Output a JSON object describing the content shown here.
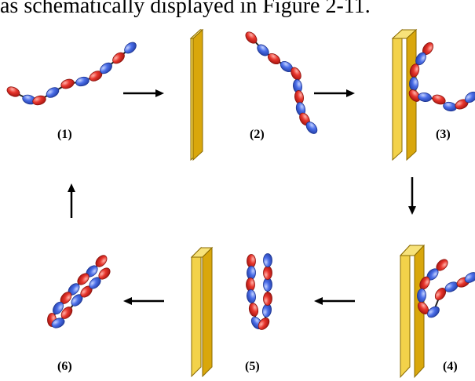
{
  "caption": "as schematically displayed in Figure 2-11.",
  "panels": [
    {
      "label": "(1)"
    },
    {
      "label": "(2)"
    },
    {
      "label": "(3)"
    },
    {
      "label": "(4)"
    },
    {
      "label": "(5)"
    },
    {
      "label": "(6)"
    }
  ],
  "colors": {
    "wall_face": "#d9a70c",
    "wall_side": "#f3d24a",
    "wall_edge": "#8a6a00",
    "bead_red": "#e8362d",
    "bead_blue": "#4b6ee8",
    "link": "#222222",
    "arrow": "#000000"
  }
}
